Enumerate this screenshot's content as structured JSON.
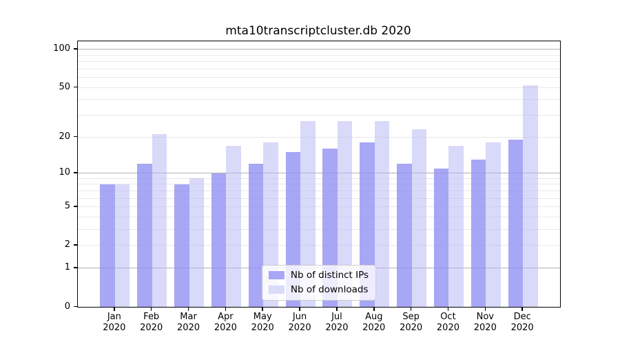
{
  "figure": {
    "background": "#ffffff"
  },
  "chart_data": {
    "type": "bar",
    "title": "mta10transcriptcluster.db 2020",
    "categories": [
      "Jan 2020",
      "Feb 2020",
      "Mar 2020",
      "Apr 2020",
      "May 2020",
      "Jun 2020",
      "Jul 2020",
      "Aug 2020",
      "Sep 2020",
      "Oct 2020",
      "Nov 2020",
      "Dec 2020"
    ],
    "x_tick_labels": [
      {
        "line1": "Jan",
        "line2": "2020"
      },
      {
        "line1": "Feb",
        "line2": "2020"
      },
      {
        "line1": "Mar",
        "line2": "2020"
      },
      {
        "line1": "Apr",
        "line2": "2020"
      },
      {
        "line1": "May",
        "line2": "2020"
      },
      {
        "line1": "Jun",
        "line2": "2020"
      },
      {
        "line1": "Jul",
        "line2": "2020"
      },
      {
        "line1": "Aug",
        "line2": "2020"
      },
      {
        "line1": "Sep",
        "line2": "2020"
      },
      {
        "line1": "Oct",
        "line2": "2020"
      },
      {
        "line1": "Nov",
        "line2": "2020"
      },
      {
        "line1": "Dec",
        "line2": "2020"
      }
    ],
    "series": [
      {
        "name": "Nb of distinct IPs",
        "swatch_color": "#a7a7f5",
        "fill": "rgba(145,145,242,0.8)",
        "values": [
          8,
          12,
          8,
          10,
          12,
          15,
          16,
          18,
          12,
          11,
          13,
          19
        ]
      },
      {
        "name": "Nb of downloads",
        "swatch_color": "#dadaf9",
        "fill": "rgba(180,180,243,0.5)",
        "values": [
          8,
          21,
          9,
          17,
          18,
          27,
          27,
          27,
          23,
          17,
          18,
          52
        ]
      }
    ],
    "xlabel": "",
    "ylabel": "",
    "yscale": "log1p",
    "ylim": [
      0,
      116
    ],
    "yticks": [
      0,
      1,
      2,
      5,
      10,
      20,
      50,
      100
    ],
    "grid": {
      "major_values": [
        1,
        10,
        100
      ],
      "minor_values": [
        2,
        3,
        4,
        5,
        6,
        7,
        8,
        9,
        20,
        30,
        40,
        50,
        60,
        70,
        80,
        90
      ],
      "major_color": "#b0b0b0",
      "minor_color": "#e8e8e8"
    },
    "legend": {
      "position": "lower center",
      "entries": [
        "Nb of distinct IPs",
        "Nb of downloads"
      ]
    }
  }
}
